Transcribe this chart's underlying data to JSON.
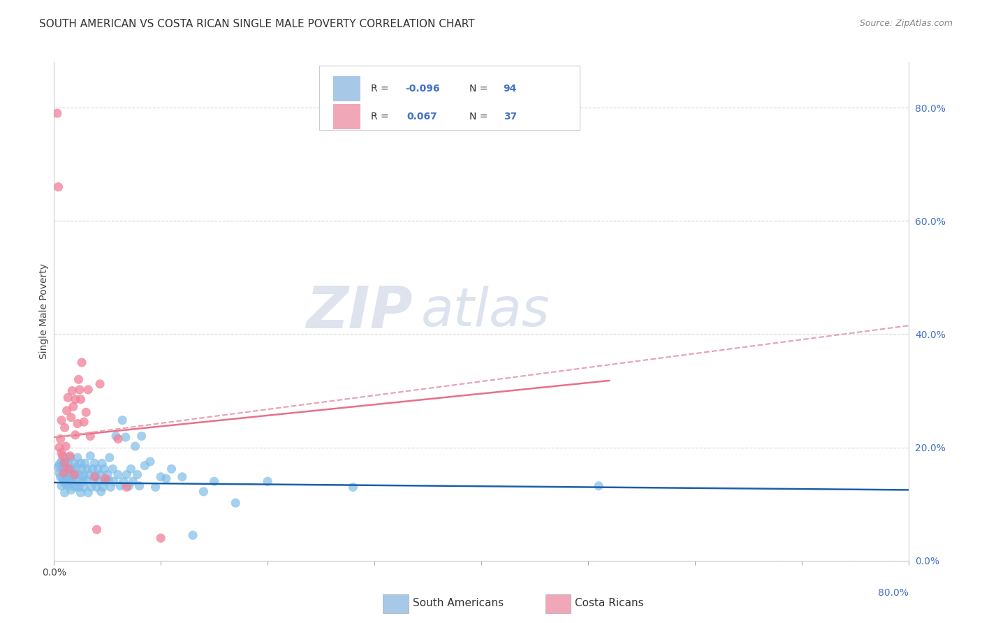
{
  "title": "SOUTH AMERICAN VS COSTA RICAN SINGLE MALE POVERTY CORRELATION CHART",
  "source": "Source: ZipAtlas.com",
  "ylabel": "Single Male Poverty",
  "watermark_zip": "ZIP",
  "watermark_atlas": "atlas",
  "xlim": [
    0.0,
    0.8
  ],
  "ylim": [
    0.0,
    0.88
  ],
  "right_yticks": [
    0.0,
    0.2,
    0.4,
    0.6,
    0.8
  ],
  "right_yticklabels": [
    "0.0%",
    "20.0%",
    "40.0%",
    "60.0%",
    "80.0%"
  ],
  "xtick_positions": [
    0.0,
    0.1,
    0.2,
    0.3,
    0.4,
    0.5,
    0.6,
    0.7,
    0.8
  ],
  "blue_scatter_x": [
    0.004,
    0.005,
    0.005,
    0.006,
    0.007,
    0.007,
    0.008,
    0.008,
    0.009,
    0.009,
    0.01,
    0.01,
    0.011,
    0.011,
    0.012,
    0.012,
    0.013,
    0.013,
    0.014,
    0.014,
    0.015,
    0.015,
    0.016,
    0.016,
    0.017,
    0.018,
    0.019,
    0.02,
    0.02,
    0.021,
    0.022,
    0.022,
    0.023,
    0.024,
    0.025,
    0.025,
    0.026,
    0.027,
    0.028,
    0.028,
    0.029,
    0.03,
    0.031,
    0.032,
    0.033,
    0.034,
    0.035,
    0.036,
    0.037,
    0.038,
    0.039,
    0.04,
    0.041,
    0.042,
    0.043,
    0.044,
    0.045,
    0.046,
    0.047,
    0.048,
    0.05,
    0.051,
    0.052,
    0.053,
    0.055,
    0.056,
    0.058,
    0.06,
    0.062,
    0.064,
    0.065,
    0.067,
    0.068,
    0.07,
    0.072,
    0.074,
    0.076,
    0.078,
    0.08,
    0.082,
    0.085,
    0.09,
    0.095,
    0.1,
    0.105,
    0.11,
    0.12,
    0.13,
    0.14,
    0.15,
    0.17,
    0.2,
    0.28,
    0.51
  ],
  "blue_scatter_y": [
    0.165,
    0.17,
    0.155,
    0.148,
    0.132,
    0.175,
    0.145,
    0.168,
    0.14,
    0.162,
    0.12,
    0.175,
    0.148,
    0.135,
    0.162,
    0.145,
    0.155,
    0.172,
    0.132,
    0.162,
    0.14,
    0.182,
    0.15,
    0.125,
    0.162,
    0.14,
    0.172,
    0.13,
    0.152,
    0.165,
    0.14,
    0.182,
    0.13,
    0.152,
    0.172,
    0.12,
    0.162,
    0.14,
    0.15,
    0.13,
    0.172,
    0.142,
    0.162,
    0.12,
    0.152,
    0.185,
    0.13,
    0.162,
    0.14,
    0.172,
    0.15,
    0.13,
    0.162,
    0.14,
    0.152,
    0.122,
    0.172,
    0.13,
    0.162,
    0.14,
    0.152,
    0.142,
    0.182,
    0.13,
    0.162,
    0.14,
    0.22,
    0.152,
    0.132,
    0.248,
    0.14,
    0.218,
    0.152,
    0.132,
    0.162,
    0.14,
    0.202,
    0.152,
    0.132,
    0.22,
    0.168,
    0.175,
    0.13,
    0.148,
    0.145,
    0.162,
    0.148,
    0.045,
    0.122,
    0.14,
    0.102,
    0.14,
    0.13,
    0.132
  ],
  "pink_scatter_x": [
    0.003,
    0.004,
    0.005,
    0.006,
    0.007,
    0.007,
    0.008,
    0.009,
    0.01,
    0.01,
    0.011,
    0.012,
    0.013,
    0.014,
    0.015,
    0.016,
    0.017,
    0.018,
    0.019,
    0.02,
    0.02,
    0.022,
    0.023,
    0.024,
    0.025,
    0.026,
    0.028,
    0.03,
    0.032,
    0.034,
    0.038,
    0.043,
    0.048,
    0.06,
    0.068,
    0.04,
    0.1
  ],
  "pink_scatter_y": [
    0.79,
    0.66,
    0.2,
    0.215,
    0.19,
    0.248,
    0.185,
    0.155,
    0.235,
    0.172,
    0.202,
    0.265,
    0.288,
    0.162,
    0.185,
    0.253,
    0.3,
    0.272,
    0.152,
    0.222,
    0.285,
    0.242,
    0.32,
    0.302,
    0.285,
    0.35,
    0.245,
    0.262,
    0.302,
    0.22,
    0.148,
    0.312,
    0.145,
    0.215,
    0.13,
    0.055,
    0.04
  ],
  "blue_line_x": [
    0.0,
    0.8
  ],
  "blue_line_y": [
    0.138,
    0.125
  ],
  "pink_solid_line_x": [
    0.0,
    0.52
  ],
  "pink_solid_line_y": [
    0.218,
    0.318
  ],
  "pink_dashed_line_x": [
    0.0,
    0.8
  ],
  "pink_dashed_line_y": [
    0.218,
    0.415
  ],
  "blue_dot_color": "#7fbce8",
  "pink_dot_color": "#f08098",
  "blue_line_color": "#1a5fa8",
  "pink_solid_color": "#e8708a",
  "pink_dashed_color": "#e8a0b0",
  "legend_box_color": "#a8c8e8",
  "legend_pink_color": "#f0a8b8",
  "background_color": "#ffffff",
  "grid_color": "#d8d8d8",
  "title_fontsize": 11,
  "source_fontsize": 9,
  "axis_label_fontsize": 10,
  "legend_fontsize": 10,
  "watermark_fontsize_zip": 60,
  "watermark_fontsize_atlas": 55
}
